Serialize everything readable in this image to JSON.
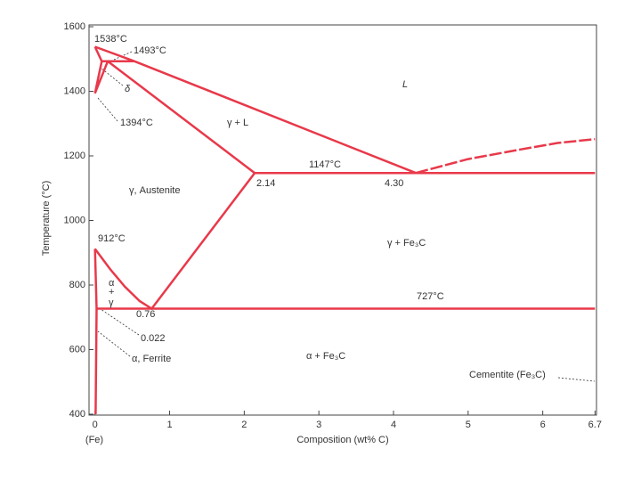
{
  "chart_data": {
    "type": "line",
    "x_label": "Composition (wt% C)",
    "y_label": "Temperature (°C)",
    "xlim": [
      -0.08,
      6.72
    ],
    "ylim": [
      400,
      1600
    ],
    "xticks": [
      0,
      1,
      2,
      3,
      4,
      5,
      6,
      6.7
    ],
    "yticks": [
      400,
      600,
      800,
      1000,
      1200,
      1400,
      1600
    ],
    "x_origin_note": "(Fe)",
    "color": "#e8394a",
    "series": [
      {
        "x": [
          0,
          0.53,
          4.3
        ],
        "values": [
          1538,
          1493,
          1147
        ]
      },
      {
        "x": [
          4.3,
          5.0,
          5.7,
          6.2,
          6.7
        ],
        "values": [
          1147,
          1190,
          1220,
          1240,
          1252
        ],
        "dashed": true
      },
      {
        "x": [
          0,
          0.09,
          0.53
        ],
        "values": [
          1538,
          1493,
          1493
        ]
      },
      {
        "x": [
          0.09,
          0,
          0.17
        ],
        "values": [
          1493,
          1394,
          1493
        ]
      },
      {
        "x": [
          0.17,
          2.14,
          6.7
        ],
        "values": [
          1493,
          1147,
          1147
        ]
      },
      {
        "x": [
          0,
          0.2,
          0.4,
          0.6,
          0.76,
          2.14
        ],
        "values": [
          912,
          850,
          795,
          750,
          727,
          1147
        ]
      },
      {
        "x": [
          0.022,
          6.7
        ],
        "values": [
          727,
          727
        ]
      },
      {
        "x": [
          0,
          0.022,
          0.008
        ],
        "values": [
          912,
          727,
          400
        ]
      }
    ],
    "annotations": [
      "1538°C",
      "1493°C",
      "1394°C",
      "1147°C",
      "2.14",
      "4.30",
      "912°C",
      "727°C",
      "0.76",
      "0.022",
      "L",
      "γ + L",
      "γ, Austenite",
      "γ + Fe₃C",
      "α",
      "+",
      "γ",
      "δ",
      "α, Ferrite",
      "α + Fe₃C",
      "Cementite (Fe₃C)"
    ]
  }
}
